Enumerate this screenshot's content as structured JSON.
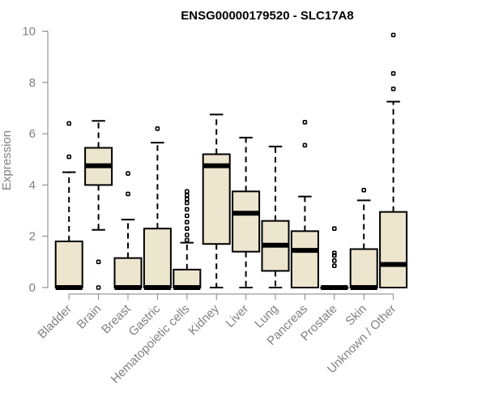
{
  "chart_data": {
    "type": "boxplot",
    "title": "ENSG00000179520 - SLC17A8",
    "xlabel": "",
    "ylabel": "Expression",
    "ylim": [
      0,
      10
    ],
    "yticks": [
      0,
      2,
      4,
      6,
      8,
      10
    ],
    "colors": {
      "box_fill": "#ede6cf",
      "stroke": "#000000",
      "axis": "#808080"
    },
    "categories": [
      "Bladder",
      "Brain",
      "Breast",
      "Gastric",
      "Hematopoietic cells",
      "Kidney",
      "Liver",
      "Lung",
      "Pancreas",
      "Prostate",
      "Skin",
      "Unknown / Other"
    ],
    "boxes": [
      {
        "category": "Bladder",
        "whisker_low": 0,
        "q1": 0,
        "median": 0,
        "q3": 1.8,
        "whisker_high": 4.5,
        "outliers": [
          5.1,
          6.4
        ]
      },
      {
        "category": "Brain",
        "whisker_low": 2.25,
        "q1": 4.0,
        "median": 4.75,
        "q3": 5.45,
        "whisker_high": 6.5,
        "outliers": [
          1.0,
          0.0
        ]
      },
      {
        "category": "Breast",
        "whisker_low": 0,
        "q1": 0,
        "median": 0,
        "q3": 1.15,
        "whisker_high": 2.65,
        "outliers": [
          3.65,
          4.45
        ]
      },
      {
        "category": "Gastric",
        "whisker_low": 0,
        "q1": 0,
        "median": 0,
        "q3": 2.3,
        "whisker_high": 5.65,
        "outliers": [
          6.2
        ]
      },
      {
        "category": "Hematopoietic cells",
        "whisker_low": 0,
        "q1": 0,
        "median": 0,
        "q3": 0.7,
        "whisker_high": 1.75,
        "outliers": [
          1.85,
          2.05,
          2.3,
          2.55,
          2.8,
          3.05,
          3.3,
          3.45,
          3.6,
          3.75
        ]
      },
      {
        "category": "Kidney",
        "whisker_low": 0,
        "q1": 1.7,
        "median": 4.75,
        "q3": 5.2,
        "whisker_high": 6.75,
        "outliers": []
      },
      {
        "category": "Liver",
        "whisker_low": 0,
        "q1": 1.4,
        "median": 2.9,
        "q3": 3.75,
        "whisker_high": 5.85,
        "outliers": []
      },
      {
        "category": "Lung",
        "whisker_low": 0,
        "q1": 0.65,
        "median": 1.65,
        "q3": 2.6,
        "whisker_high": 5.5,
        "outliers": []
      },
      {
        "category": "Pancreas",
        "whisker_low": 0,
        "q1": 0,
        "median": 1.45,
        "q3": 2.2,
        "whisker_high": 3.55,
        "outliers": [
          5.55,
          6.45
        ]
      },
      {
        "category": "Prostate",
        "whisker_low": 0,
        "q1": 0,
        "median": 0,
        "q3": 0,
        "whisker_high": 0,
        "outliers": [
          0.85,
          1.05,
          1.25,
          1.35,
          2.3
        ]
      },
      {
        "category": "Skin",
        "whisker_low": 0,
        "q1": 0,
        "median": 0,
        "q3": 1.5,
        "whisker_high": 3.4,
        "outliers": [
          3.8
        ]
      },
      {
        "category": "Unknown / Other",
        "whisker_low": 0,
        "q1": 0,
        "median": 0.9,
        "q3": 2.95,
        "whisker_high": 7.25,
        "outliers": [
          7.75,
          8.35,
          9.85
        ]
      }
    ]
  }
}
